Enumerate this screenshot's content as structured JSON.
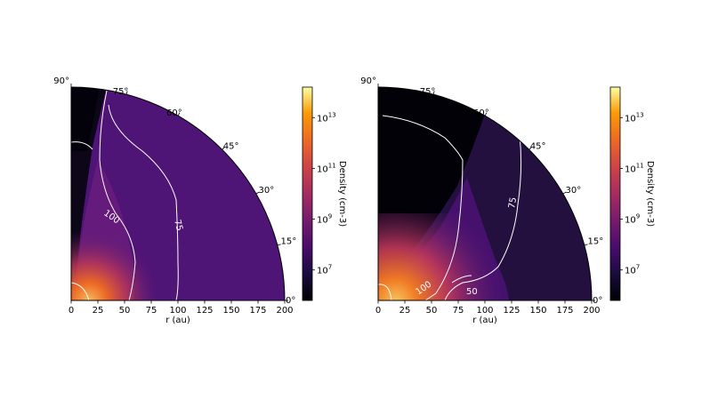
{
  "chart_data": [
    {
      "type": "heatmap",
      "projection": "polar-quadrant",
      "title": "",
      "xlabel": "r (au)",
      "xlim": [
        0,
        200
      ],
      "x_ticks": [
        "0",
        "25",
        "50",
        "75",
        "100",
        "125",
        "150",
        "175",
        "200"
      ],
      "angle_ticks": [
        "0°",
        "15°",
        "30°",
        "45°",
        "60°",
        "75°",
        "90°"
      ],
      "colormap": "inferno",
      "colorbar": {
        "label": "Density (cm-3)",
        "ticks": [
          "10^7",
          "10^9",
          "10^11",
          "10^13"
        ],
        "log_range": [
          5.8,
          14.2
        ]
      },
      "contours": [
        {
          "label": "100",
          "color": "#ffffff"
        },
        {
          "label": "75",
          "color": "#ffffff"
        }
      ]
    },
    {
      "type": "heatmap",
      "projection": "polar-quadrant",
      "title": "",
      "xlabel": "r (au)",
      "xlim": [
        0,
        200
      ],
      "x_ticks": [
        "0",
        "25",
        "50",
        "75",
        "100",
        "125",
        "150",
        "175",
        "200"
      ],
      "angle_ticks": [
        "0°",
        "15°",
        "30°",
        "45°",
        "60°",
        "75°",
        "90°"
      ],
      "colormap": "inferno",
      "colorbar": {
        "label": "Density (cm-3)",
        "ticks": [
          "10^7",
          "10^9",
          "10^11",
          "10^13"
        ],
        "log_range": [
          5.8,
          14.2
        ]
      },
      "contours": [
        {
          "label": "100",
          "color": "#ffffff"
        },
        {
          "label": "75",
          "color": "#ffffff"
        },
        {
          "label": "50",
          "color": "#ffffff"
        }
      ]
    }
  ]
}
